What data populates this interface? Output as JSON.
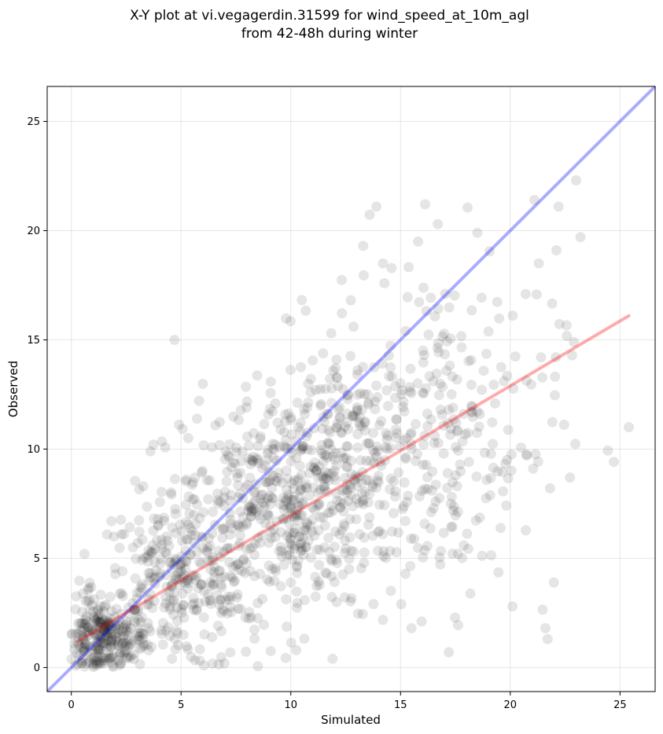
{
  "chart_data": {
    "type": "scatter",
    "title_line1": "X-Y plot at vi.vegagerdin.31599 for wind_speed_at_10m_agl",
    "title_line2": "from 42-48h during winter",
    "xlabel": "Simulated",
    "ylabel": "Observed",
    "xlim": [
      -1.1,
      26.6
    ],
    "ylim": [
      -1.1,
      26.6
    ],
    "xticks": [
      0,
      5,
      10,
      15,
      20,
      25
    ],
    "yticks": [
      0,
      5,
      10,
      15,
      20,
      25
    ],
    "grid": true,
    "point_color": "#000000",
    "point_alpha": 0.1,
    "identity_line": {
      "color": "#0000ff",
      "alpha": 0.33,
      "x": [
        -1.1,
        26.6
      ],
      "y": [
        -1.1,
        26.6
      ]
    },
    "fit_line": {
      "color": "#ff0000",
      "alpha": 0.33,
      "x": [
        0.3,
        25.4
      ],
      "y": [
        1.2,
        16.1
      ]
    },
    "notable_points": [
      [
        25.4,
        11.0
      ],
      [
        23.0,
        22.3
      ],
      [
        23.2,
        19.7
      ],
      [
        22.2,
        21.1
      ],
      [
        21.1,
        21.4
      ],
      [
        16.7,
        20.3
      ],
      [
        13.9,
        21.1
      ],
      [
        18.5,
        19.9
      ],
      [
        13.3,
        19.3
      ],
      [
        15.8,
        19.5
      ],
      [
        4.7,
        15.0
      ],
      [
        17.2,
        0.7
      ],
      [
        21.6,
        1.8
      ],
      [
        20.1,
        2.8
      ],
      [
        15.5,
        1.8
      ],
      [
        21.4,
        14.2
      ],
      [
        22.1,
        19.1
      ],
      [
        21.3,
        18.5
      ],
      [
        20.7,
        17.1
      ],
      [
        14.2,
        18.5
      ],
      [
        3.6,
        9.9
      ],
      [
        0.6,
        5.2
      ],
      [
        22.9,
        14.9
      ],
      [
        21.7,
        1.3
      ],
      [
        11.9,
        0.4
      ]
    ],
    "bulk_clusters": [
      {
        "n": 300,
        "mx": 1.4,
        "my": 1.3,
        "sx": 1.0,
        "sy": 0.9
      },
      {
        "n": 320,
        "mx": 5.0,
        "my": 3.8,
        "sx": 2.0,
        "sy": 2.0
      },
      {
        "n": 420,
        "mx": 9.5,
        "my": 7.6,
        "sx": 2.2,
        "sy": 2.4
      },
      {
        "n": 280,
        "mx": 13.3,
        "my": 9.6,
        "sx": 2.4,
        "sy": 3.0
      },
      {
        "n": 200,
        "mx": 17.3,
        "my": 11.0,
        "sx": 2.5,
        "sy": 3.9
      }
    ]
  }
}
